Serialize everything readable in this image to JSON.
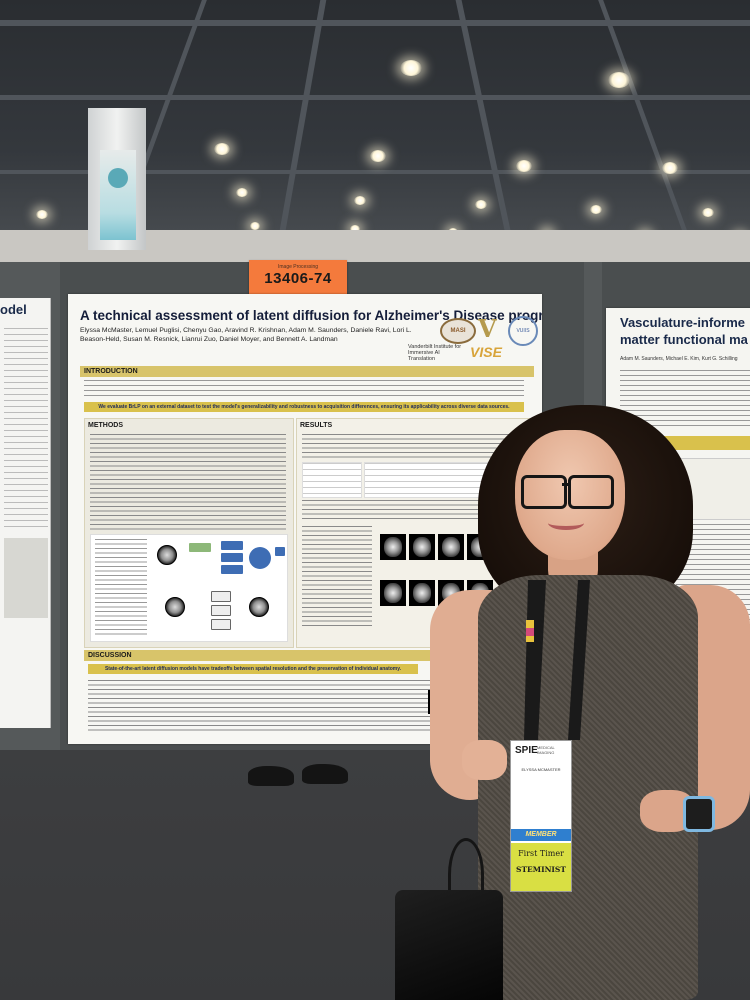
{
  "poster_number": {
    "label": "Image Processing",
    "value": "13406-74"
  },
  "left_poster": {
    "title": "odel"
  },
  "main_poster": {
    "title": "A technical assessment of latent diffusion for Alzheimer's Disease progression",
    "authors": "Elyssa McMaster, Lemuel Puglisi, Chenyu Gao, Aravind R. Krishnan, Adam M. Saunders, Daniele Ravi, Lori L. Beason-Held, Susan M. Resnick, Lianrui Zuo, Daniel Moyer, and Bennett A. Landman",
    "logos": {
      "masi": "MASI",
      "v": "V",
      "vuiis": "VUIIS",
      "vandy": "Vanderbilt Institute for Immersive AI Translation",
      "vise": "VISE"
    },
    "sections": {
      "introduction": "INTRODUCTION",
      "methods": "METHODS",
      "results": "RESULTS",
      "discussion": "DISCUSSION"
    },
    "intro_highlight": "We evaluate BrLP on an external dataset to test the model's generalizability and robustness to acquisition differences, ensuring its applicability across diverse data sources.",
    "discussion_highlight": "State-of-the-art latent diffusion models have tradeoffs between spatial resolution and the preservation of individual anatomy."
  },
  "right_poster": {
    "title_line1": "Vasculature-informe",
    "title_line2": "matter functional ma",
    "authors": "Adam M. Saunders, Michael E. Kim, Kurt G. Schilling"
  },
  "badge": {
    "brand": "SPIE",
    "subtitle": "MEDICAL IMAGING",
    "name": "ELYSSA MCMASTER",
    "member": "MEMBER",
    "first_timer": "First Timer",
    "steminist": "STEMINIST"
  }
}
